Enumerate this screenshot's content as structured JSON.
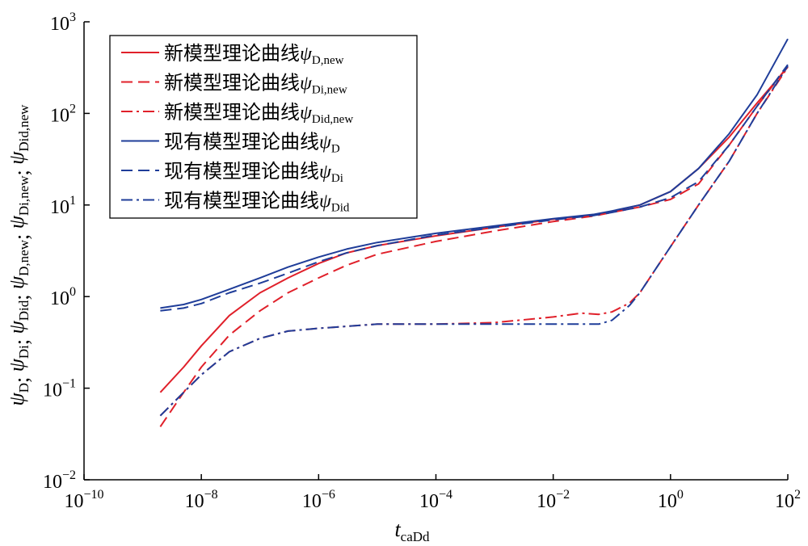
{
  "chart_data": {
    "type": "line",
    "title": "",
    "xscale": "log",
    "yscale": "log",
    "xlim": [
      1e-10,
      100
    ],
    "ylim": [
      0.01,
      1000
    ],
    "grid": false,
    "legend_position": "top-left",
    "xlabel": {
      "symbol": "t",
      "subscript": "caDd"
    },
    "ylabel": [
      {
        "symbol": "ψ",
        "subscript": "D",
        "sep": "; "
      },
      {
        "symbol": "ψ",
        "subscript": "Di",
        "sep": "; "
      },
      {
        "symbol": "ψ",
        "subscript": "Did",
        "sep": "; "
      },
      {
        "symbol": "ψ",
        "subscript": "D,new",
        "sep": "; "
      },
      {
        "symbol": "ψ",
        "subscript": "Di,new",
        "sep": "; "
      },
      {
        "symbol": "ψ",
        "subscript": "Did,new",
        "sep": ""
      }
    ],
    "xticks": [
      {
        "base": "10",
        "exp": "−10",
        "value": 1e-10
      },
      {
        "base": "10",
        "exp": "−8",
        "value": 1e-08
      },
      {
        "base": "10",
        "exp": "−6",
        "value": 1e-06
      },
      {
        "base": "10",
        "exp": "−4",
        "value": 0.0001
      },
      {
        "base": "10",
        "exp": "−2",
        "value": 0.01
      },
      {
        "base": "10",
        "exp": "0",
        "value": 1
      },
      {
        "base": "10",
        "exp": "2",
        "value": 100
      }
    ],
    "yticks": [
      {
        "base": "10",
        "exp": "−2",
        "value": 0.01
      },
      {
        "base": "10",
        "exp": "−1",
        "value": 0.1
      },
      {
        "base": "10",
        "exp": "0",
        "value": 1
      },
      {
        "base": "10",
        "exp": "1",
        "value": 10
      },
      {
        "base": "10",
        "exp": "2",
        "value": 100
      },
      {
        "base": "10",
        "exp": "3",
        "value": 1000
      }
    ],
    "series": [
      {
        "name": "新模型理论曲线ψD,new",
        "label_text": "新模型理论曲线",
        "symbol": "ψ",
        "subscript": "D,new",
        "color": "#e0202a",
        "dash": "solid",
        "x": [
          2e-09,
          5e-09,
          1e-08,
          3e-08,
          1e-07,
          3e-07,
          1e-06,
          3e-06,
          1e-05,
          0.0001,
          0.001,
          0.01,
          0.05,
          0.1,
          0.3,
          1,
          3,
          10,
          30,
          100
        ],
        "y": [
          0.09,
          0.17,
          0.29,
          0.62,
          1.1,
          1.6,
          2.3,
          3.0,
          3.6,
          4.6,
          5.7,
          7.0,
          7.8,
          8.5,
          10,
          14,
          25,
          55,
          130,
          320
        ]
      },
      {
        "name": "新模型理论曲线ψDi,new",
        "label_text": "新模型理论曲线",
        "symbol": "ψ",
        "subscript": "Di,new",
        "color": "#e0202a",
        "dash": "dashed",
        "x": [
          2e-09,
          5e-09,
          1e-08,
          3e-08,
          1e-07,
          3e-07,
          1e-06,
          3e-06,
          1e-05,
          0.0001,
          0.001,
          0.01,
          0.05,
          0.1,
          0.3,
          1,
          3,
          10,
          30,
          100
        ],
        "y": [
          0.038,
          0.09,
          0.17,
          0.38,
          0.7,
          1.1,
          1.6,
          2.2,
          2.9,
          4.0,
          5.2,
          6.6,
          7.6,
          8.3,
          9.5,
          11.5,
          17,
          45,
          120,
          330
        ]
      },
      {
        "name": "新模型理论曲线ψDid,new",
        "label_text": "新模型理论曲线",
        "symbol": "ψ",
        "subscript": "Did,new",
        "color": "#e0202a",
        "dash": "dashdot",
        "x": [
          2e-09,
          5e-09,
          1e-08,
          3e-08,
          1e-07,
          3e-07,
          1e-06,
          1e-05,
          0.0001,
          0.001,
          0.01,
          0.03,
          0.06,
          0.1,
          0.2,
          0.3,
          1,
          3,
          10,
          30,
          100
        ],
        "y": [
          0.05,
          0.09,
          0.14,
          0.25,
          0.35,
          0.42,
          0.45,
          0.5,
          0.5,
          0.52,
          0.6,
          0.66,
          0.64,
          0.68,
          0.85,
          1.1,
          3.5,
          10,
          30,
          100,
          320
        ]
      },
      {
        "name": "现有模型理论曲线ψD",
        "label_text": "现有模型理论曲线",
        "symbol": "ψ",
        "subscript": "D",
        "color": "#1f3d99",
        "dash": "solid",
        "x": [
          2e-09,
          5e-09,
          1e-08,
          3e-08,
          1e-07,
          3e-07,
          1e-06,
          3e-06,
          1e-05,
          0.0001,
          0.001,
          0.01,
          0.05,
          0.1,
          0.3,
          1,
          3,
          10,
          30,
          100
        ],
        "y": [
          0.75,
          0.82,
          0.93,
          1.2,
          1.6,
          2.1,
          2.7,
          3.3,
          3.9,
          4.9,
          5.9,
          7.1,
          7.9,
          8.6,
          10,
          14,
          25,
          60,
          160,
          650
        ]
      },
      {
        "name": "现有模型理论曲线ψDi",
        "label_text": "现有模型理论曲线",
        "symbol": "ψ",
        "subscript": "Di",
        "color": "#1f3d99",
        "dash": "dashed",
        "x": [
          2e-09,
          5e-09,
          1e-08,
          3e-08,
          1e-07,
          3e-07,
          1e-06,
          3e-06,
          1e-05,
          0.0001,
          0.001,
          0.01,
          0.05,
          0.1,
          0.3,
          1,
          3,
          10,
          30,
          100
        ],
        "y": [
          0.7,
          0.75,
          0.84,
          1.1,
          1.4,
          1.8,
          2.4,
          3.0,
          3.6,
          4.7,
          5.7,
          6.9,
          7.7,
          8.3,
          9.5,
          12,
          18,
          45,
          120,
          340
        ]
      },
      {
        "name": "现有模型理论曲线ψDid",
        "label_text": "现有模型理论曲线",
        "symbol": "ψ",
        "subscript": "Did",
        "color": "#1f3d99",
        "dash": "dashdot",
        "x": [
          2e-09,
          5e-09,
          1e-08,
          3e-08,
          1e-07,
          3e-07,
          1e-06,
          1e-05,
          0.0001,
          0.001,
          0.01,
          0.03,
          0.06,
          0.1,
          0.2,
          0.3,
          1,
          3,
          10,
          30,
          100
        ],
        "y": [
          0.05,
          0.09,
          0.14,
          0.25,
          0.35,
          0.42,
          0.45,
          0.5,
          0.5,
          0.5,
          0.5,
          0.5,
          0.5,
          0.55,
          0.8,
          1.1,
          3.5,
          10,
          30,
          100,
          330
        ]
      }
    ]
  }
}
